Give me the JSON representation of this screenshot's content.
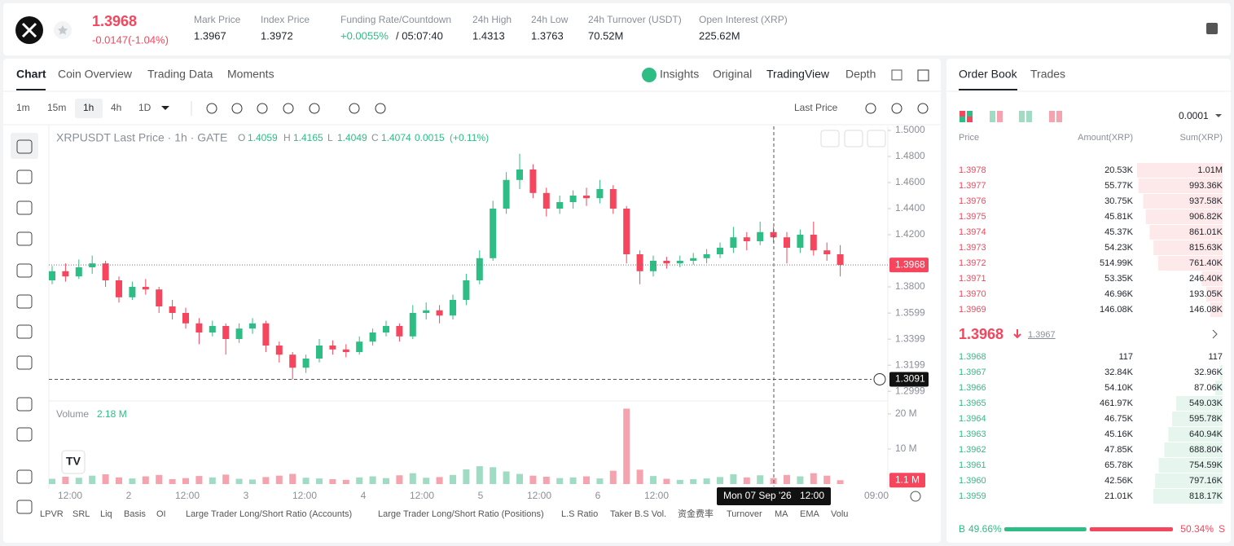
{
  "header": {
    "price": "1.3968",
    "change": "-0.0147(-1.04%)",
    "stats": [
      {
        "label": "Mark Price",
        "value": "1.3967"
      },
      {
        "label": "Index Price",
        "value": "1.3972"
      },
      {
        "label": "Funding Rate/Countdown",
        "value": "+0.0055%",
        "extra": "/ 05:07:40"
      },
      {
        "label": "24h High",
        "value": "1.4313"
      },
      {
        "label": "24h Low",
        "value": "1.3763"
      },
      {
        "label": "24h Turnover (USDT)",
        "value": "70.52M"
      },
      {
        "label": "Open Interest (XRP)",
        "value": "225.62M"
      }
    ]
  },
  "chart_tabs": [
    "Chart",
    "Coin Overview",
    "Trading Data",
    "Moments"
  ],
  "view_tabs": [
    "Insights",
    "Original",
    "TradingView",
    "Depth"
  ],
  "intervals": [
    "1m",
    "15m",
    "1h",
    "4h",
    "1D"
  ],
  "price_type": "Last Price",
  "chart": {
    "type": "candlestick",
    "symbol": "XRPUSDT Last Price · 1h · GATE",
    "ohlc": [
      {
        "k": "O",
        "v": "1.4059"
      },
      {
        "k": "H",
        "v": "1.4165"
      },
      {
        "k": "L",
        "v": "1.4049"
      },
      {
        "k": "C",
        "v": "1.4074"
      }
    ],
    "delta": "0.0015",
    "delta_pct": "(+0.11%)",
    "grid": false,
    "up_color": "#2ebd85",
    "down_color": "#f6465d",
    "ylim": [
      1.29375,
      1.5
    ],
    "yticks": [
      {
        "value": 1.5,
        "label": "1.5000"
      },
      {
        "value": 1.48,
        "label": "1.4800"
      },
      {
        "value": 1.46,
        "label": "1.4600"
      },
      {
        "value": 1.44,
        "label": "1.4400"
      },
      {
        "value": 1.42,
        "label": "1.4200"
      },
      {
        "value": 1.38,
        "label": "1.3800"
      },
      {
        "value": 1.3599,
        "label": "1.3599"
      },
      {
        "value": 1.3399,
        "label": "1.3399"
      },
      {
        "value": 1.3199,
        "label": "1.3199"
      },
      {
        "value": 1.2999,
        "label": "1.2999"
      }
    ],
    "candles": [
      [
        1.385,
        1.396,
        1.382,
        1.392
      ],
      [
        1.392,
        1.398,
        1.384,
        1.388
      ],
      [
        1.388,
        1.401,
        1.386,
        1.395
      ],
      [
        1.395,
        1.404,
        1.39,
        1.398
      ],
      [
        1.398,
        1.4,
        1.38,
        1.385
      ],
      [
        1.385,
        1.388,
        1.368,
        1.372
      ],
      [
        1.372,
        1.384,
        1.37,
        1.38
      ],
      [
        1.38,
        1.386,
        1.374,
        1.378
      ],
      [
        1.378,
        1.38,
        1.36,
        1.365
      ],
      [
        1.365,
        1.37,
        1.355,
        1.36
      ],
      [
        1.36,
        1.364,
        1.348,
        1.352
      ],
      [
        1.352,
        1.356,
        1.336,
        1.345
      ],
      [
        1.345,
        1.354,
        1.342,
        1.35
      ],
      [
        1.35,
        1.352,
        1.328,
        1.34
      ],
      [
        1.34,
        1.352,
        1.337,
        1.348
      ],
      [
        1.348,
        1.356,
        1.344,
        1.352
      ],
      [
        1.352,
        1.354,
        1.33,
        1.335
      ],
      [
        1.335,
        1.338,
        1.322,
        1.328
      ],
      [
        1.328,
        1.33,
        1.309,
        1.318
      ],
      [
        1.318,
        1.328,
        1.314,
        1.325
      ],
      [
        1.325,
        1.34,
        1.322,
        1.335
      ],
      [
        1.335,
        1.339,
        1.328,
        1.332
      ],
      [
        1.332,
        1.336,
        1.326,
        1.33
      ],
      [
        1.33,
        1.342,
        1.328,
        1.338
      ],
      [
        1.338,
        1.348,
        1.335,
        1.345
      ],
      [
        1.345,
        1.354,
        1.342,
        1.35
      ],
      [
        1.35,
        1.352,
        1.338,
        1.342
      ],
      [
        1.342,
        1.366,
        1.34,
        1.36
      ],
      [
        1.36,
        1.368,
        1.355,
        1.362
      ],
      [
        1.362,
        1.366,
        1.352,
        1.358
      ],
      [
        1.358,
        1.374,
        1.355,
        1.37
      ],
      [
        1.37,
        1.39,
        1.366,
        1.385
      ],
      [
        1.385,
        1.408,
        1.382,
        1.402
      ],
      [
        1.402,
        1.446,
        1.4,
        1.44
      ],
      [
        1.44,
        1.468,
        1.436,
        1.462
      ],
      [
        1.462,
        1.482,
        1.455,
        1.47
      ],
      [
        1.47,
        1.474,
        1.448,
        1.452
      ],
      [
        1.452,
        1.456,
        1.434,
        1.44
      ],
      [
        1.44,
        1.45,
        1.436,
        1.445
      ],
      [
        1.445,
        1.454,
        1.44,
        1.45
      ],
      [
        1.45,
        1.456,
        1.442,
        1.448
      ],
      [
        1.448,
        1.462,
        1.444,
        1.455
      ],
      [
        1.455,
        1.458,
        1.436,
        1.44
      ],
      [
        1.44,
        1.442,
        1.398,
        1.405
      ],
      [
        1.405,
        1.408,
        1.382,
        1.392
      ],
      [
        1.392,
        1.404,
        1.388,
        1.4
      ],
      [
        1.4,
        1.403,
        1.394,
        1.398
      ],
      [
        1.398,
        1.404,
        1.395,
        1.4
      ],
      [
        1.4,
        1.406,
        1.397,
        1.402
      ],
      [
        1.402,
        1.409,
        1.398,
        1.405
      ],
      [
        1.405,
        1.414,
        1.402,
        1.41
      ],
      [
        1.41,
        1.426,
        1.406,
        1.418
      ],
      [
        1.418,
        1.422,
        1.408,
        1.415
      ],
      [
        1.415,
        1.43,
        1.412,
        1.422
      ],
      [
        1.422,
        1.426,
        1.414,
        1.418
      ],
      [
        1.418,
        1.422,
        1.398,
        1.41
      ],
      [
        1.41,
        1.424,
        1.406,
        1.42
      ],
      [
        1.42,
        1.43,
        1.404,
        1.408
      ],
      [
        1.408,
        1.414,
        1.4,
        1.405
      ],
      [
        1.405,
        1.412,
        1.388,
        1.3968
      ]
    ],
    "volume_label": "Volume",
    "volume_value": "2.18 M",
    "volume_ylim": [
      0,
      23000000
    ],
    "volume_ticks": [
      {
        "value": 20000000,
        "label": "20 M"
      },
      {
        "value": 10000000,
        "label": "10 M"
      }
    ],
    "volumes": [
      1500000,
      2100000,
      1800000,
      2400000,
      2800000,
      1900000,
      1600000,
      2200000,
      2600000,
      1400000,
      1700000,
      2300000,
      1900000,
      2700000,
      1500000,
      1300000,
      2000000,
      2400000,
      2900000,
      1800000,
      1600000,
      1400000,
      1200000,
      1900000,
      2200000,
      1700000,
      2500000,
      3100000,
      1800000,
      2000000,
      2600000,
      4200000,
      5100000,
      4800000,
      3600000,
      2900000,
      2400000,
      2100000,
      1700000,
      1900000,
      2200000,
      1600000,
      3800000,
      21500000,
      4100000,
      2300000,
      1500000,
      1200000,
      1400000,
      1600000,
      2000000,
      2800000,
      1900000,
      2500000,
      1700000,
      2600000,
      2200000,
      3100000,
      2400000,
      1100000
    ],
    "last_volume": {
      "value": 1100000,
      "label": "1.1 M"
    },
    "last_price": 1.3968,
    "crosshair_price": 1.3091,
    "crosshair_date": "Mon 07 Sep '26",
    "crosshair_time": "12:00",
    "time_labels": [
      "12:00",
      "2",
      "12:00",
      "3",
      "12:00",
      "4",
      "12:00",
      "5",
      "12:00",
      "6",
      "12:00",
      "09:00"
    ]
  },
  "indicators": [
    "LPVR",
    "SRL",
    "Liq",
    "Basis",
    "OI",
    "Large Trader Long/Short Ratio (Accounts)",
    "Large Trader Long/Short Ratio (Positions)",
    "L.S Ratio",
    "Taker B.S Vol.",
    "资金费率",
    "Turnover",
    "MA",
    "EMA",
    "Volu"
  ],
  "order_book": {
    "tabs": [
      "Order Book",
      "Trades"
    ],
    "precision": "0.0001",
    "columns": [
      "Price",
      "Amount(XRP)",
      "Sum(XRP)"
    ],
    "asks": [
      {
        "price": "1.3978",
        "amount": "20.53K",
        "sum": {
          "value": 1010000,
          "label": "1.01M"
        }
      },
      {
        "price": "1.3977",
        "amount": "55.77K",
        "sum": {
          "value": 993360,
          "label": "993.36K"
        }
      },
      {
        "price": "1.3976",
        "amount": "30.75K",
        "sum": {
          "value": 937580,
          "label": "937.58K"
        }
      },
      {
        "price": "1.3975",
        "amount": "45.81K",
        "sum": {
          "value": 906820,
          "label": "906.82K"
        }
      },
      {
        "price": "1.3974",
        "amount": "45.37K",
        "sum": {
          "value": 861010,
          "label": "861.01K"
        }
      },
      {
        "price": "1.3973",
        "amount": "54.23K",
        "sum": {
          "value": 815630,
          "label": "815.63K"
        }
      },
      {
        "price": "1.3972",
        "amount": "514.99K",
        "sum": {
          "value": 761400,
          "label": "761.40K"
        }
      },
      {
        "price": "1.3971",
        "amount": "53.35K",
        "sum": {
          "value": 246400,
          "label": "246.40K"
        }
      },
      {
        "price": "1.3970",
        "amount": "46.96K",
        "sum": {
          "value": 193050,
          "label": "193.05K"
        }
      },
      {
        "price": "1.3969",
        "amount": "146.08K",
        "sum": {
          "value": 146080,
          "label": "146.08K"
        }
      }
    ],
    "mid_price": "1.3968",
    "mark_price": "1.3967",
    "bids": [
      {
        "price": "1.3968",
        "amount": "117",
        "sum": {
          "value": 117,
          "label": "117"
        }
      },
      {
        "price": "1.3967",
        "amount": "32.84K",
        "sum": {
          "value": 32960,
          "label": "32.96K"
        }
      },
      {
        "price": "1.3966",
        "amount": "54.10K",
        "sum": {
          "value": 87060,
          "label": "87.06K"
        }
      },
      {
        "price": "1.3965",
        "amount": "461.97K",
        "sum": {
          "value": 549030,
          "label": "549.03K"
        }
      },
      {
        "price": "1.3964",
        "amount": "46.75K",
        "sum": {
          "value": 595780,
          "label": "595.78K"
        }
      },
      {
        "price": "1.3963",
        "amount": "45.16K",
        "sum": {
          "value": 640940,
          "label": "640.94K"
        }
      },
      {
        "price": "1.3962",
        "amount": "47.85K",
        "sum": {
          "value": 688800,
          "label": "688.80K"
        }
      },
      {
        "price": "1.3961",
        "amount": "65.78K",
        "sum": {
          "value": 754590,
          "label": "754.59K"
        }
      },
      {
        "price": "1.3960",
        "amount": "42.56K",
        "sum": {
          "value": 797160,
          "label": "797.16K"
        }
      },
      {
        "price": "1.3959",
        "amount": "21.01K",
        "sum": {
          "value": 818170,
          "label": "818.17K"
        }
      }
    ],
    "buy_label": "B",
    "sell_label": "S",
    "buy": {
      "value": 49.66,
      "label": "49.66%"
    },
    "sell": {
      "value": 50.34,
      "label": "50.34%"
    }
  }
}
